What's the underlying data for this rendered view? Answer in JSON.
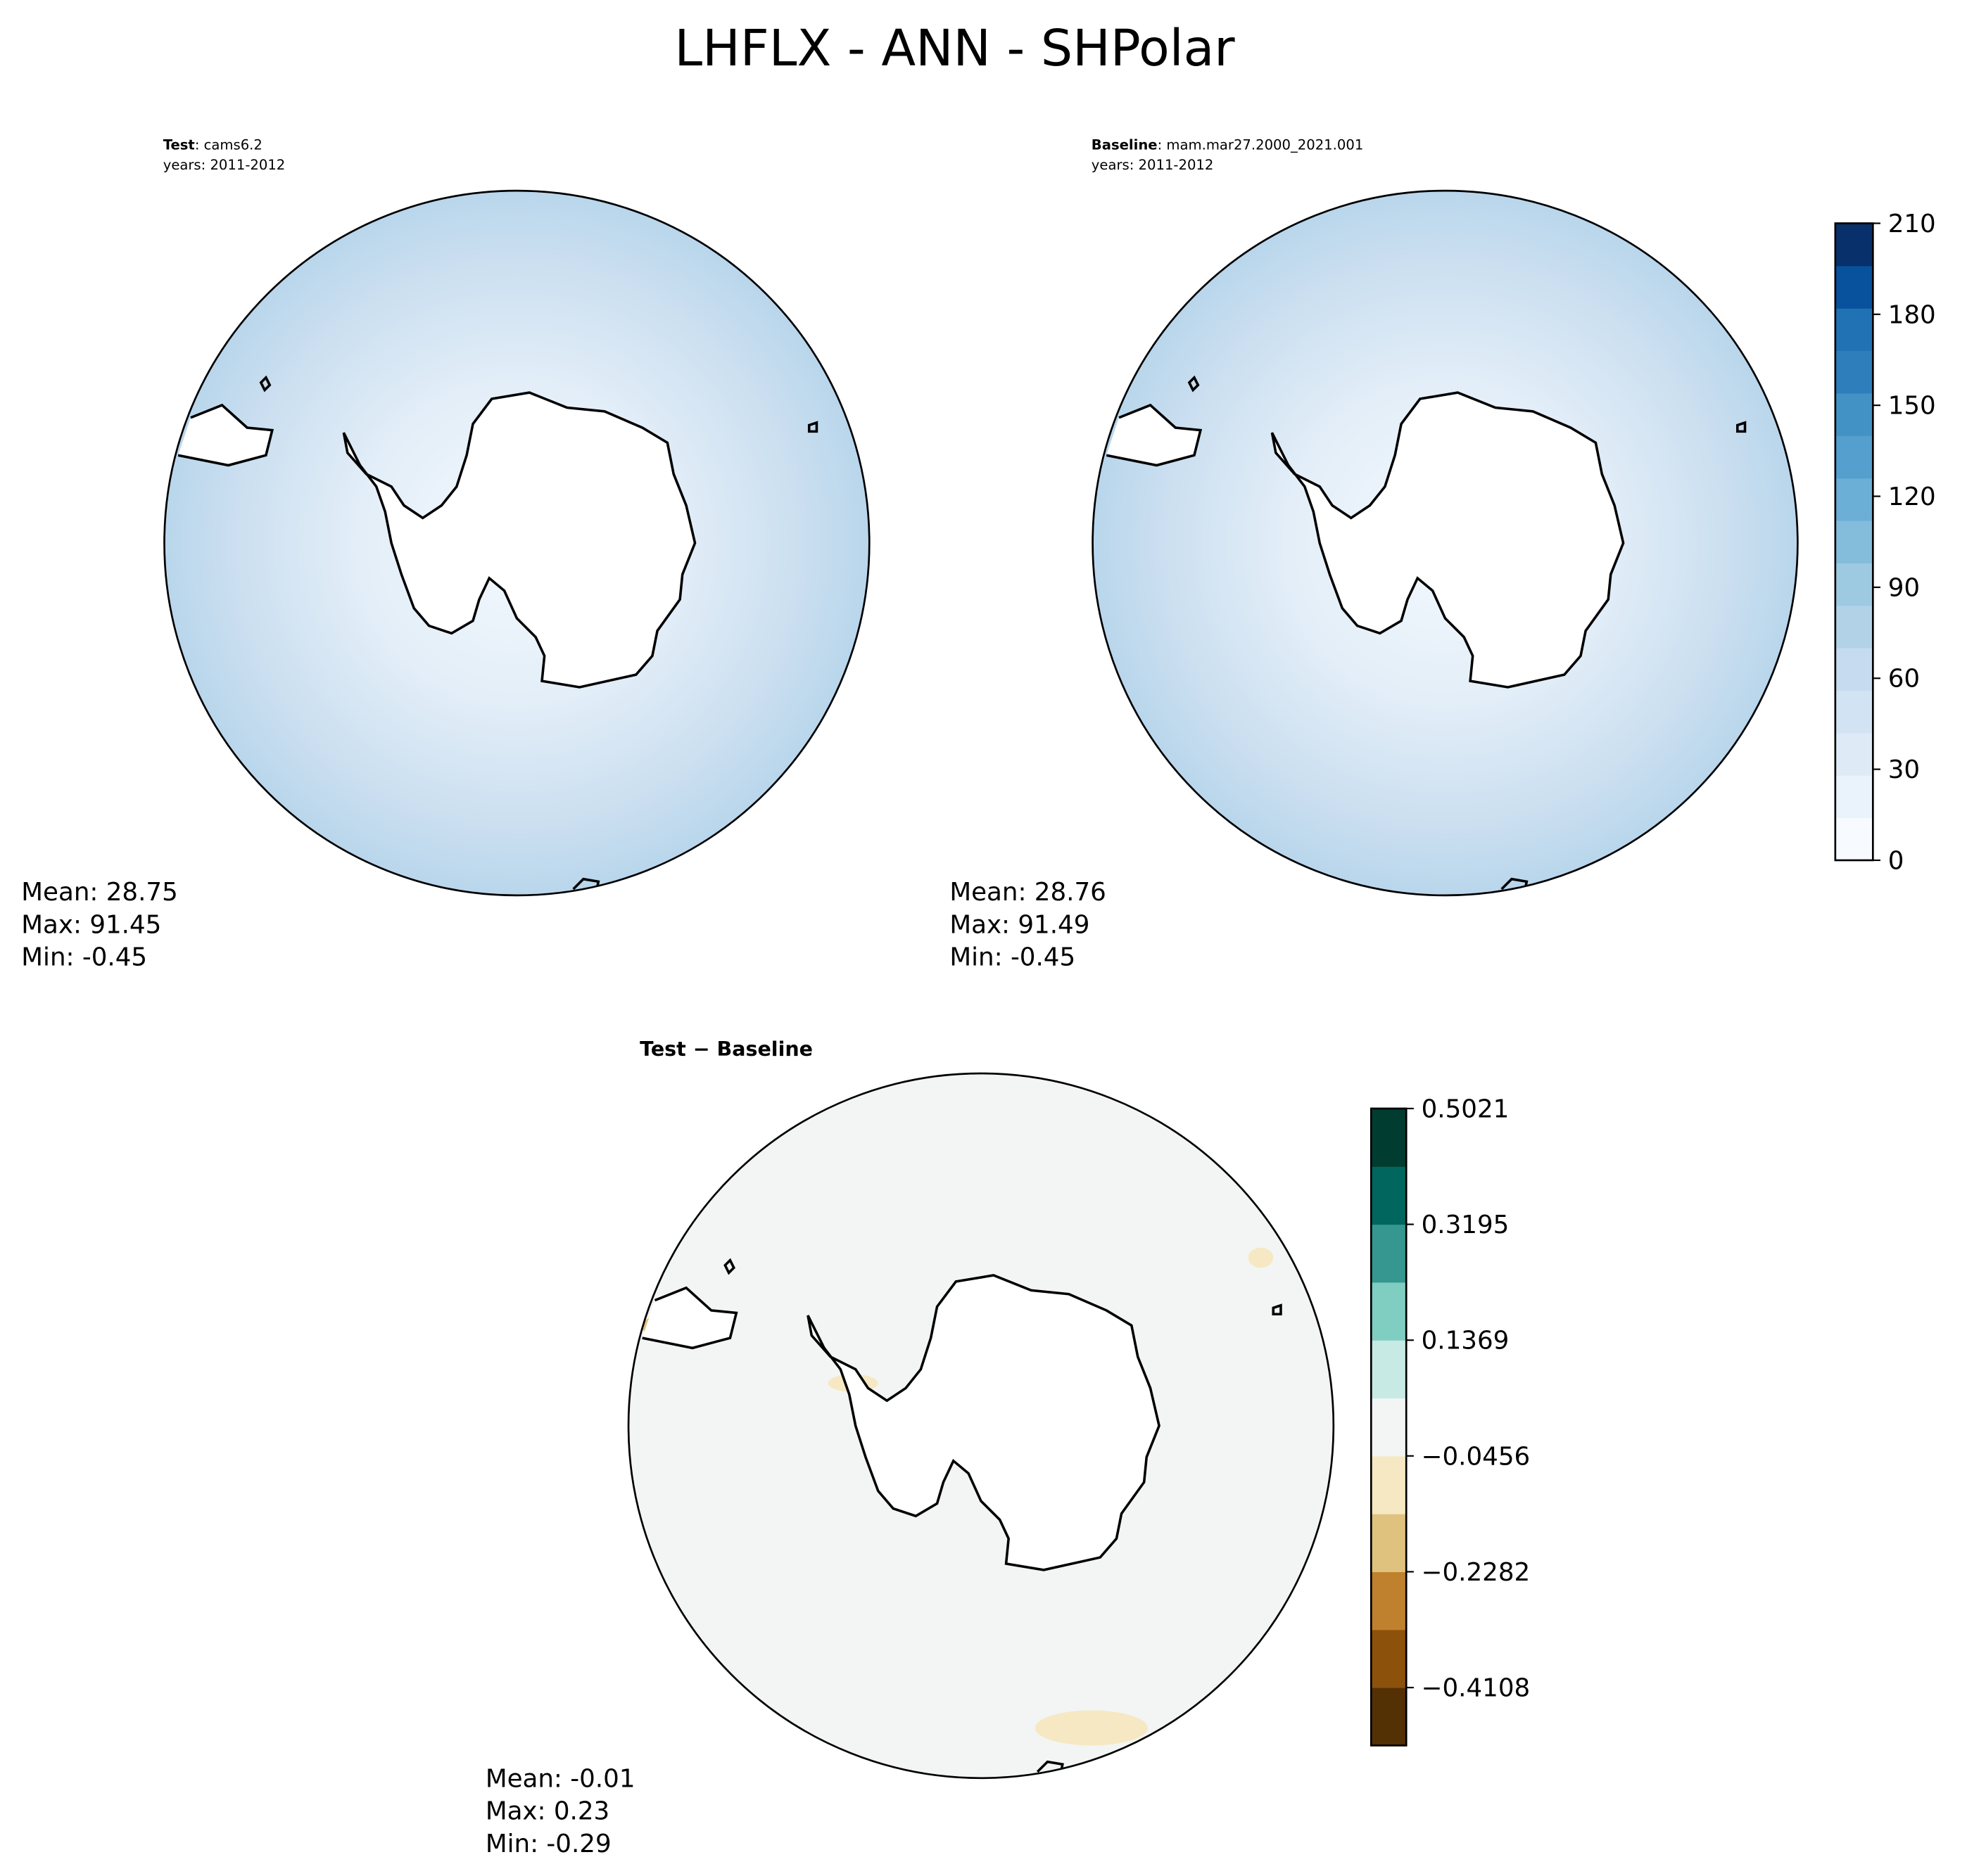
{
  "title": "LHFLX - ANN - SHPolar",
  "panels": [
    {
      "label": "Test",
      "name": ": cams6.2",
      "years": "years: 2011-2012",
      "stats": [
        "Mean: 28.75",
        "Max: 91.45",
        "Min: -0.45"
      ]
    },
    {
      "label": "Baseline",
      "name": ": mam.mar27.2000_2021.001",
      "years": "years: 2011-2012",
      "stats": [
        "Mean: 28.76",
        "Max: 91.49",
        "Min: -0.45"
      ]
    },
    {
      "label": "Test − Baseline",
      "stats": [
        "Mean: -0.01",
        "Max:  0.23",
        "Min: -0.29"
      ]
    }
  ],
  "colorbars": [
    {
      "lim": [
        0,
        210
      ],
      "ticks": [
        0,
        30,
        60,
        90,
        120,
        150,
        180,
        210
      ],
      "colors": [
        "#f7fbff",
        "#eaf3fb",
        "#deebf7",
        "#d2e3f3",
        "#c6dbef",
        "#b2d2e8",
        "#9ecae1",
        "#84bcdb",
        "#6baed6",
        "#549fcd",
        "#4292c6",
        "#2f7ebc",
        "#2171b5",
        "#08519c",
        "#08306b"
      ]
    },
    {
      "lim": [
        -0.5021,
        0.5021
      ],
      "ticks": [
        {
          "value": -0.4108,
          "label": "−0.4108"
        },
        {
          "value": -0.2282,
          "label": "−0.2282"
        },
        {
          "value": -0.0456,
          "label": "−0.0456"
        },
        0.1369,
        0.3195,
        0.5021
      ],
      "colors": [
        "#543005",
        "#8c510a",
        "#bf812d",
        "#dfc27d",
        "#f6e8c3",
        "#f3f5f4",
        "#c7eae5",
        "#80cdc1",
        "#35978f",
        "#01665e",
        "#003c30"
      ]
    }
  ]
}
